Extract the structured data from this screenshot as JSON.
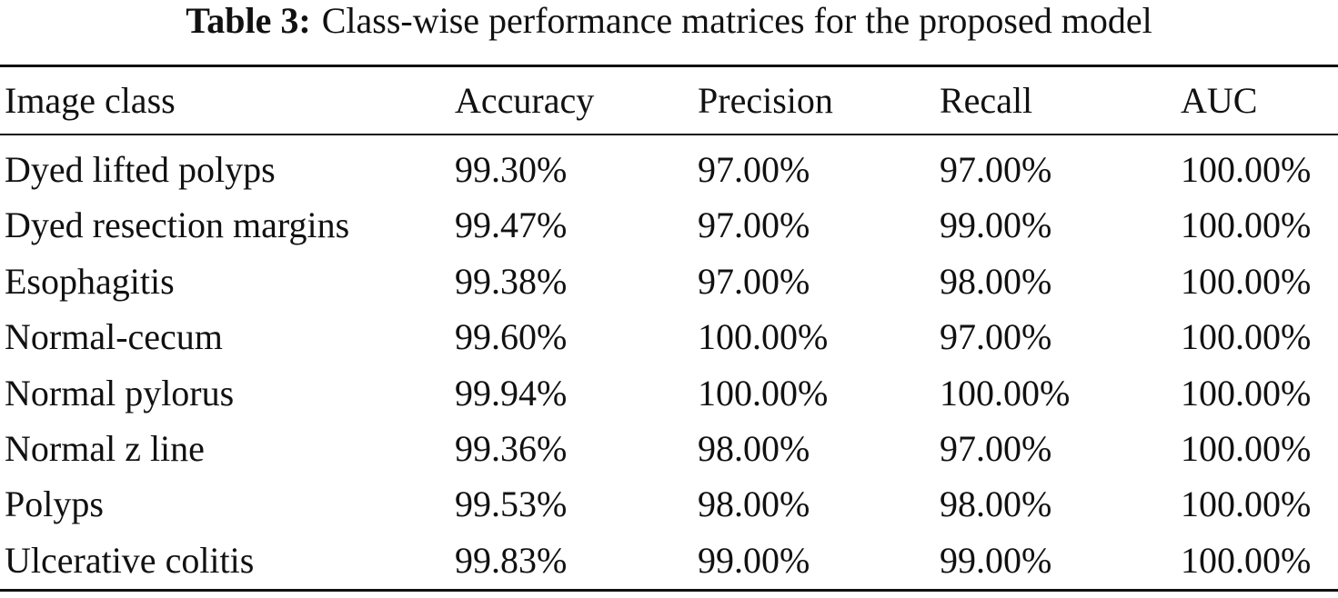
{
  "caption": {
    "label": "Table 3:",
    "text": "Class-wise performance matrices for the proposed model"
  },
  "table": {
    "header": [
      "Image class",
      "Accuracy",
      "Precision",
      "Recall",
      "AUC"
    ],
    "rows": [
      [
        "Dyed lifted polyps",
        "99.30%",
        "97.00%",
        "97.00%",
        "100.00%"
      ],
      [
        "Dyed resection margins",
        "99.47%",
        "97.00%",
        "99.00%",
        "100.00%"
      ],
      [
        "Esophagitis",
        "99.38%",
        "97.00%",
        "98.00%",
        "100.00%"
      ],
      [
        "Normal-cecum",
        "99.60%",
        "100.00%",
        "97.00%",
        "100.00%"
      ],
      [
        "Normal pylorus",
        "99.94%",
        "100.00%",
        "100.00%",
        "100.00%"
      ],
      [
        "Normal z line",
        "99.36%",
        "98.00%",
        "97.00%",
        "100.00%"
      ],
      [
        "Polyps",
        "99.53%",
        "98.00%",
        "98.00%",
        "100.00%"
      ],
      [
        "Ulcerative colitis",
        "99.83%",
        "99.00%",
        "99.00%",
        "100.00%"
      ]
    ]
  }
}
